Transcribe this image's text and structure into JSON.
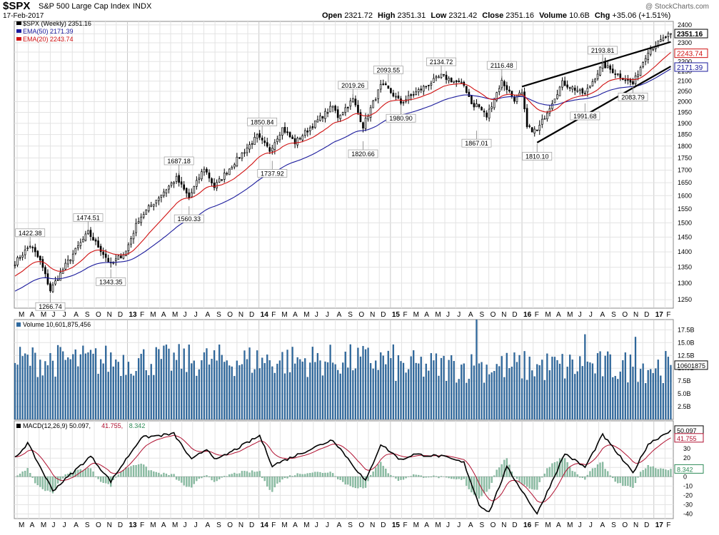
{
  "header": {
    "symbol": "$SPX",
    "name": "S&P 500 Large Cap Index",
    "exchange": "INDX",
    "date": "17-Feb-2017",
    "ohlc": {
      "open_label": "Open",
      "open": "2321.72",
      "high_label": "High",
      "high": "2351.31",
      "low_label": "Low",
      "low": "2321.42",
      "close_label": "Close",
      "close": "2351.16",
      "volume_label": "Volume",
      "volume": "10.6B",
      "chg_label": "Chg",
      "chg": "+35.06 (+1.51%)"
    },
    "watermark": "@ StockCharts.com"
  },
  "colors": {
    "price": "#000000",
    "ema50": "#1a1a9c",
    "ema20": "#d01010",
    "volume": "#2f6aa0",
    "macd": "#000000",
    "signal": "#b01030",
    "histogram": "#8fbfa6",
    "grid": "#e3e3e3"
  },
  "chart_data": [
    {
      "type": "candlestick",
      "title": "$SPX (Weekly) 2351.16",
      "legend": [
        {
          "label": "$SPX (Weekly) 2351.16",
          "color": "#000000"
        },
        {
          "label": "EMA(50) 2171.39",
          "color": "#1a1a9c"
        },
        {
          "label": "EMA(20) 2243.74",
          "color": "#d01010"
        }
      ],
      "legend_position": "top-left",
      "y_scale": "log",
      "ylim": [
        1225,
        2420
      ],
      "y_ticks": [
        1250,
        1300,
        1350,
        1400,
        1450,
        1500,
        1550,
        1600,
        1650,
        1700,
        1750,
        1800,
        1850,
        1900,
        1950,
        2000,
        2050,
        2100,
        2150,
        2200,
        2250,
        2300,
        2350,
        2400
      ],
      "x_month_labels": [
        "M",
        "A",
        "M",
        "J",
        "J",
        "A",
        "S",
        "O",
        "N",
        "D",
        "13",
        "F",
        "M",
        "A",
        "M",
        "J",
        "J",
        "A",
        "S",
        "O",
        "N",
        "D",
        "14",
        "F",
        "M",
        "A",
        "M",
        "J",
        "J",
        "A",
        "S",
        "O",
        "N",
        "D",
        "15",
        "F",
        "M",
        "A",
        "M",
        "J",
        "J",
        "A",
        "S",
        "O",
        "N",
        "D",
        "16",
        "F",
        "M",
        "A",
        "M",
        "J",
        "J",
        "A",
        "S",
        "O",
        "N",
        "D",
        "17",
        "F"
      ],
      "close_keypoints": [
        {
          "date": "2012-02-24",
          "value": 1365
        },
        {
          "date": "2012-04-06",
          "value": 1422
        },
        {
          "date": "2012-05-04",
          "value": 1370
        },
        {
          "date": "2012-06-01",
          "value": 1278
        },
        {
          "date": "2012-07-13",
          "value": 1356
        },
        {
          "date": "2012-09-14",
          "value": 1466
        },
        {
          "date": "2012-11-16",
          "value": 1359
        },
        {
          "date": "2012-12-28",
          "value": 1402
        },
        {
          "date": "2013-02-01",
          "value": 1513
        },
        {
          "date": "2013-05-17",
          "value": 1667
        },
        {
          "date": "2013-06-21",
          "value": 1592
        },
        {
          "date": "2013-08-02",
          "value": 1709
        },
        {
          "date": "2013-08-30",
          "value": 1633
        },
        {
          "date": "2013-12-27",
          "value": 1841
        },
        {
          "date": "2014-01-31",
          "value": 1782
        },
        {
          "date": "2014-03-07",
          "value": 1878
        },
        {
          "date": "2014-04-11",
          "value": 1815
        },
        {
          "date": "2014-07-25",
          "value": 1978
        },
        {
          "date": "2014-08-08",
          "value": 1931
        },
        {
          "date": "2014-09-19",
          "value": 2010
        },
        {
          "date": "2014-10-17",
          "value": 1887
        },
        {
          "date": "2014-12-05",
          "value": 2075
        },
        {
          "date": "2014-12-19",
          "value": 2070
        },
        {
          "date": "2015-01-30",
          "value": 1995
        },
        {
          "date": "2015-05-22",
          "value": 2126
        },
        {
          "date": "2015-07-24",
          "value": 2079
        },
        {
          "date": "2015-08-21",
          "value": 1971
        },
        {
          "date": "2015-08-28",
          "value": 1989
        },
        {
          "date": "2015-09-25",
          "value": 1931
        },
        {
          "date": "2015-11-06",
          "value": 2099
        },
        {
          "date": "2015-12-11",
          "value": 2012
        },
        {
          "date": "2015-12-31",
          "value": 2044
        },
        {
          "date": "2016-01-15",
          "value": 1880
        },
        {
          "date": "2016-02-12",
          "value": 1864
        },
        {
          "date": "2016-04-22",
          "value": 2091
        },
        {
          "date": "2016-06-24",
          "value": 2037
        },
        {
          "date": "2016-08-12",
          "value": 2184
        },
        {
          "date": "2016-11-04",
          "value": 2085
        },
        {
          "date": "2016-12-16",
          "value": 2258
        },
        {
          "date": "2017-02-17",
          "value": 2351.16
        }
      ],
      "annotations": [
        {
          "label": "1422.38",
          "date": "2012-04-06",
          "value": 1422.38,
          "position": "above"
        },
        {
          "label": "1266.74",
          "date": "2012-06-01",
          "value": 1266.74,
          "position": "below"
        },
        {
          "label": "1474.51",
          "date": "2012-09-14",
          "value": 1474.51,
          "position": "above"
        },
        {
          "label": "1343.35",
          "date": "2012-11-16",
          "value": 1343.35,
          "position": "below"
        },
        {
          "label": "1687.18",
          "date": "2013-05-24",
          "value": 1687.18,
          "position": "above"
        },
        {
          "label": "1560.33",
          "date": "2013-06-21",
          "value": 1560.33,
          "position": "below"
        },
        {
          "label": "1850.84",
          "date": "2014-01-10",
          "value": 1850.84,
          "position": "above"
        },
        {
          "label": "1737.92",
          "date": "2014-02-07",
          "value": 1737.92,
          "position": "below"
        },
        {
          "label": "2019.26",
          "date": "2014-09-19",
          "value": 2019.26,
          "position": "above"
        },
        {
          "label": "1820.66",
          "date": "2014-10-17",
          "value": 1820.66,
          "position": "below"
        },
        {
          "label": "2093.55",
          "date": "2014-12-26",
          "value": 2093.55,
          "position": "above"
        },
        {
          "label": "1980.90",
          "date": "2015-01-30",
          "value": 1980.9,
          "position": "below"
        },
        {
          "label": "2134.72",
          "date": "2015-05-22",
          "value": 2134.72,
          "position": "above"
        },
        {
          "label": "1867.01",
          "date": "2015-08-28",
          "value": 1867.01,
          "position": "below"
        },
        {
          "label": "2116.48",
          "date": "2015-11-06",
          "value": 2116.48,
          "position": "above"
        },
        {
          "label": "1810.10",
          "date": "2016-02-12",
          "value": 1810.1,
          "position": "below"
        },
        {
          "label": "1991.68",
          "date": "2016-06-24",
          "value": 1991.68,
          "position": "below"
        },
        {
          "label": "2193.81",
          "date": "2016-08-12",
          "value": 2193.81,
          "position": "above"
        },
        {
          "label": "2083.79",
          "date": "2016-11-04",
          "value": 2083.79,
          "position": "below"
        }
      ],
      "trendlines": [
        {
          "from": {
            "date": "2016-01-01",
            "value": 2073
          },
          "to": {
            "date": "2017-02-17",
            "value": 2305
          }
        },
        {
          "from": {
            "date": "2016-02-12",
            "value": 1815
          },
          "to": {
            "date": "2017-02-17",
            "value": 2175
          }
        }
      ],
      "last_value_labels": [
        {
          "label": "2351.16",
          "value": 2351.16,
          "color": "#000000"
        },
        {
          "label": "2243.74",
          "value": 2243.74,
          "color": "#d01010"
        },
        {
          "label": "2171.39",
          "value": 2171.39,
          "color": "#1a1a9c"
        }
      ]
    },
    {
      "type": "bar",
      "title": "Volume 10,601,875,456",
      "y_ticks": [
        2.5,
        5.0,
        7.5,
        10.0,
        12.5,
        15.0,
        17.5
      ],
      "y_tick_labels": [
        "2.5B",
        "5.0B",
        "7.5B",
        "10.0B",
        "12.5B",
        "15.0B",
        "17.5B"
      ],
      "ylim": [
        0,
        19.5
      ],
      "unit": "billions",
      "base_level": 11.5,
      "spikes": [
        {
          "date": "2015-08-28",
          "value": 21.0
        },
        {
          "date": "2016-06-24",
          "value": 16.6
        },
        {
          "date": "2016-11-11",
          "value": 16.1
        }
      ],
      "last_value_labels": [
        {
          "label": "10601875",
          "value": 10.6
        }
      ]
    },
    {
      "type": "line",
      "title": "MACD(12,26,9) 50.097, 41.755, 8.342",
      "legend": [
        {
          "label": "MACD(12,26,9) 50.097",
          "color": "#000000"
        },
        {
          "label": "41.755",
          "color": "#b01030"
        },
        {
          "label": "8.342",
          "color": "#2e8b57"
        }
      ],
      "ylim": [
        -45,
        60
      ],
      "y_ticks": [
        -40,
        -30,
        -20,
        -10,
        0,
        10,
        20,
        30
      ],
      "macd_keypoints": [
        {
          "date": "2012-02-24",
          "value": 20
        },
        {
          "date": "2012-03-30",
          "value": 36
        },
        {
          "date": "2012-06-08",
          "value": -15
        },
        {
          "date": "2012-09-21",
          "value": 22
        },
        {
          "date": "2012-11-16",
          "value": -5
        },
        {
          "date": "2013-02-08",
          "value": 42
        },
        {
          "date": "2013-05-10",
          "value": 46
        },
        {
          "date": "2013-06-28",
          "value": 18
        },
        {
          "date": "2013-08-09",
          "value": 30
        },
        {
          "date": "2013-09-06",
          "value": 18
        },
        {
          "date": "2014-01-03",
          "value": 44
        },
        {
          "date": "2014-02-07",
          "value": 12
        },
        {
          "date": "2014-07-25",
          "value": 40
        },
        {
          "date": "2014-08-15",
          "value": 30
        },
        {
          "date": "2014-10-24",
          "value": -5
        },
        {
          "date": "2014-12-05",
          "value": 35
        },
        {
          "date": "2015-01-30",
          "value": 18
        },
        {
          "date": "2015-03-06",
          "value": 24
        },
        {
          "date": "2015-05-22",
          "value": 22
        },
        {
          "date": "2015-07-24",
          "value": 15
        },
        {
          "date": "2015-09-04",
          "value": -30
        },
        {
          "date": "2015-10-02",
          "value": -38
        },
        {
          "date": "2015-11-20",
          "value": 10
        },
        {
          "date": "2015-12-24",
          "value": -10
        },
        {
          "date": "2016-02-12",
          "value": -40
        },
        {
          "date": "2016-04-29",
          "value": 25
        },
        {
          "date": "2016-06-24",
          "value": 10
        },
        {
          "date": "2016-08-12",
          "value": 45
        },
        {
          "date": "2016-11-04",
          "value": 4
        },
        {
          "date": "2016-12-16",
          "value": 35
        },
        {
          "date": "2017-02-17",
          "value": 50.097
        }
      ],
      "last_value_labels": [
        {
          "label": "50.097",
          "value": 50.097,
          "color": "#000000"
        },
        {
          "label": "41.755",
          "value": 41.755,
          "color": "#b01030"
        },
        {
          "label": "8.342",
          "value": 8.342,
          "color": "#2e8b57"
        }
      ]
    }
  ]
}
